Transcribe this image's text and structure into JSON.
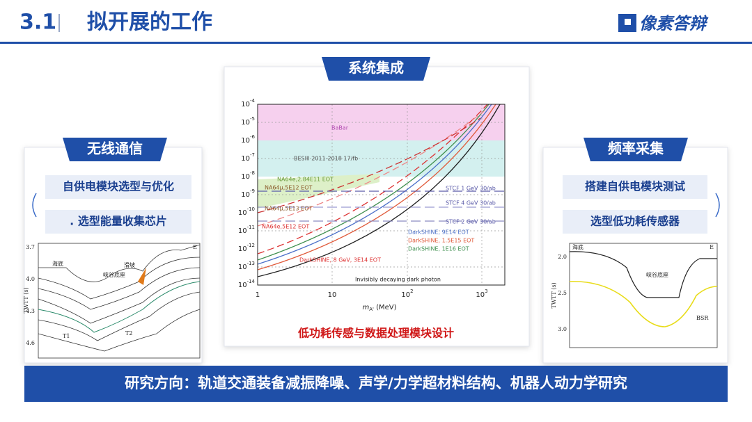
{
  "header": {
    "number": "3.1",
    "title": "拟开展的工作",
    "logo": "像素答辩"
  },
  "center": {
    "tab": "系统集成",
    "caption": "低功耗传感与数据处理模块设计",
    "plot": {
      "yticks": [
        {
          "base": "10",
          "exp": "-4"
        },
        {
          "base": "10",
          "exp": "-5"
        },
        {
          "base": "10",
          "exp": "-6"
        },
        {
          "base": "10",
          "exp": "-7"
        },
        {
          "base": "10",
          "exp": "-8"
        },
        {
          "base": "10",
          "exp": "-9"
        },
        {
          "base": "10",
          "exp": "-10"
        },
        {
          "base": "10",
          "exp": "-11"
        },
        {
          "base": "10",
          "exp": "-12"
        },
        {
          "base": "10",
          "exp": "-13"
        },
        {
          "base": "10",
          "exp": "-14"
        }
      ],
      "xticks": [
        {
          "base": "1",
          "exp": ""
        },
        {
          "base": "10",
          "exp": ""
        },
        {
          "base": "10",
          "exp": "2"
        },
        {
          "base": "10",
          "exp": "3"
        }
      ],
      "xlabel": {
        "main": "m",
        "sub": "A'",
        "unit": " (MeV)"
      },
      "annotations": [
        "BaBar",
        "BESIII 2011-2018 17/fb",
        "NA64e,2.84E11 EOT",
        "NA64μ,5E12 EOT",
        "NA64μ,5E13 EOT",
        "NA64e,5E12 EOT",
        "STCF 1 GeV 30/ab",
        "STCF 4 GeV 30/ab",
        "STCF 2 GeV 30/ab",
        "DarkSHINE, 9E14 EOT",
        "DarkSHINE, 1.5E15 EOT",
        "DarkSHINE, 1E16 EOT",
        "DarkSHINE, 8 GeV, 3E14 EOT",
        "Invisibly decaying dark photon"
      ]
    }
  },
  "left": {
    "tab": "无线通信",
    "items": [
      "自供电模块选型与优化",
      ". 选型能量收集芯片"
    ],
    "figure": {
      "yticks": [
        "3.7",
        "4.0",
        "4.3",
        "4.6"
      ],
      "ylabel": "TWTT (s)",
      "corner": "E",
      "labels": [
        "海底",
        "峡谷底座",
        "滑坡",
        "T1",
        "T2"
      ]
    }
  },
  "right": {
    "tab": "频率采集",
    "items": [
      "搭建自供电模块测试",
      "选型低功耗传感器"
    ],
    "figure": {
      "yticks": [
        "2.0",
        "2.5",
        "3.0"
      ],
      "ylabel": "TWTT (s)",
      "corner": "E",
      "labels": [
        "海底",
        "峡谷底座",
        "BSR"
      ]
    }
  },
  "footer": "研究方向：轨道交通装备减振降噪、声学/力学超材料结构、机器人动力学研究"
}
